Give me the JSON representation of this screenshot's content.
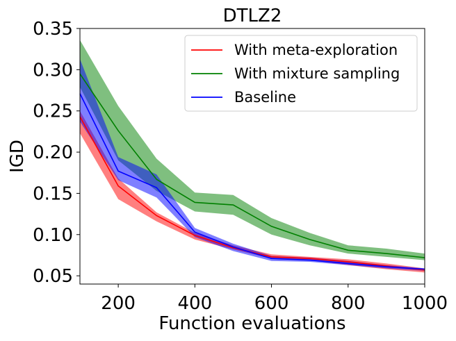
{
  "chart_data": {
    "type": "line",
    "title": "DTLZ2",
    "xlabel": "Function evaluations",
    "ylabel": "IGD",
    "xlim": [
      100,
      1000
    ],
    "ylim": [
      0.04,
      0.35
    ],
    "xticks": [
      200,
      400,
      600,
      800,
      1000
    ],
    "yticks": [
      0.05,
      0.1,
      0.15,
      0.2,
      0.25,
      0.3,
      0.35
    ],
    "xtick_labels": [
      "200",
      "400",
      "600",
      "800",
      "1000"
    ],
    "ytick_labels": [
      "0.05",
      "0.10",
      "0.15",
      "0.20",
      "0.25",
      "0.30",
      "0.35"
    ],
    "legend_position": "top-right",
    "x": [
      100,
      200,
      300,
      400,
      500,
      600,
      700,
      800,
      900,
      1000
    ],
    "series": [
      {
        "name": "With meta-exploration",
        "color": "#ff0000",
        "values": [
          0.243,
          0.159,
          0.123,
          0.099,
          0.084,
          0.073,
          0.071,
          0.067,
          0.062,
          0.057
        ],
        "lower": [
          0.223,
          0.143,
          0.116,
          0.094,
          0.082,
          0.071,
          0.069,
          0.063,
          0.058,
          0.054
        ],
        "upper": [
          0.25,
          0.168,
          0.127,
          0.102,
          0.087,
          0.076,
          0.073,
          0.07,
          0.065,
          0.059
        ]
      },
      {
        "name": "With mixture sampling",
        "color": "#008000",
        "values": [
          0.295,
          0.226,
          0.167,
          0.139,
          0.136,
          0.11,
          0.094,
          0.081,
          0.077,
          0.072
        ],
        "lower": [
          0.279,
          0.19,
          0.153,
          0.128,
          0.124,
          0.1,
          0.087,
          0.077,
          0.073,
          0.069
        ],
        "upper": [
          0.336,
          0.256,
          0.192,
          0.151,
          0.148,
          0.12,
          0.102,
          0.087,
          0.083,
          0.077
        ]
      },
      {
        "name": "Baseline",
        "color": "#0000ff",
        "values": [
          0.271,
          0.177,
          0.157,
          0.103,
          0.085,
          0.071,
          0.069,
          0.065,
          0.061,
          0.058
        ],
        "lower": [
          0.237,
          0.166,
          0.145,
          0.097,
          0.08,
          0.068,
          0.067,
          0.063,
          0.059,
          0.056
        ],
        "upper": [
          0.313,
          0.194,
          0.173,
          0.108,
          0.089,
          0.074,
          0.072,
          0.068,
          0.063,
          0.059
        ]
      }
    ]
  }
}
